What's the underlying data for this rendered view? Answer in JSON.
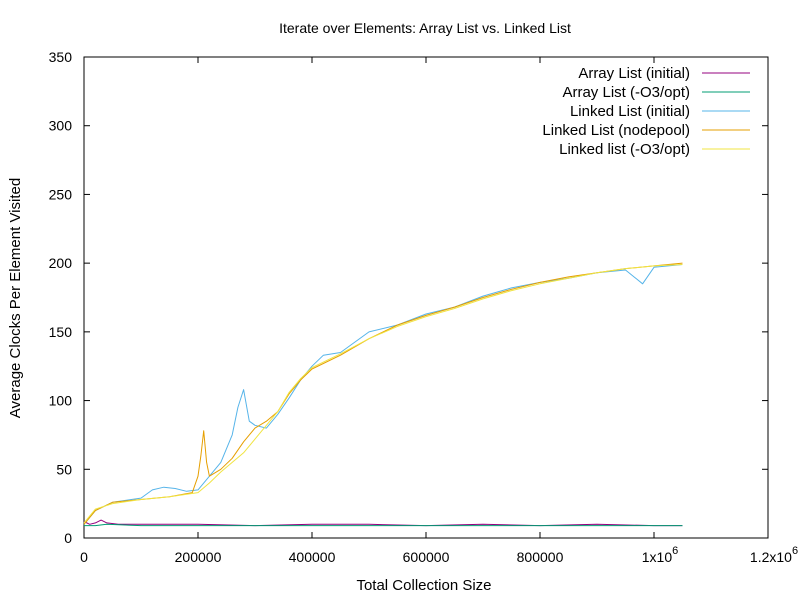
{
  "chart_data": {
    "type": "line",
    "title": "Iterate over Elements:  Array List vs. Linked List",
    "xlabel": "Total Collection Size",
    "ylabel": "Average Clocks Per Element Visited",
    "xlim": [
      0,
      1200000
    ],
    "ylim": [
      0,
      350
    ],
    "grid": false,
    "legend_position": "top-right",
    "x_ticks": [
      {
        "value": 0,
        "label": "0"
      },
      {
        "value": 200000,
        "label": "200000"
      },
      {
        "value": 400000,
        "label": "400000"
      },
      {
        "value": 600000,
        "label": "600000"
      },
      {
        "value": 800000,
        "label": "800000"
      },
      {
        "value": 1000000,
        "label": "1x10",
        "exp": "6"
      },
      {
        "value": 1200000,
        "label": "1.2x10",
        "exp": "6"
      }
    ],
    "y_ticks": [
      0,
      50,
      100,
      150,
      200,
      250,
      300,
      350
    ],
    "series": [
      {
        "name": "Array List (initial)",
        "color": "#94007f",
        "x": [
          0,
          10000,
          20000,
          30000,
          40000,
          60000,
          100000,
          200000,
          300000,
          400000,
          500000,
          600000,
          700000,
          800000,
          900000,
          1000000,
          1050000
        ],
        "y": [
          12,
          10,
          11,
          13,
          11,
          10,
          10,
          10,
          9,
          10,
          10,
          9,
          10,
          9,
          10,
          9,
          9
        ]
      },
      {
        "name": "Array List (-O3/opt)",
        "color": "#009e73",
        "x": [
          0,
          20000,
          40000,
          100000,
          200000,
          300000,
          400000,
          500000,
          600000,
          700000,
          800000,
          900000,
          1000000,
          1050000
        ],
        "y": [
          9,
          9,
          10,
          9,
          9,
          9,
          9,
          9,
          9,
          9,
          9,
          9,
          9,
          9
        ]
      },
      {
        "name": "Linked List (initial)",
        "color": "#56b4e9",
        "x": [
          0,
          20000,
          50000,
          100000,
          120000,
          140000,
          160000,
          180000,
          200000,
          220000,
          240000,
          260000,
          270000,
          280000,
          290000,
          300000,
          320000,
          340000,
          360000,
          380000,
          400000,
          420000,
          450000,
          500000,
          550000,
          600000,
          650000,
          700000,
          750000,
          800000,
          850000,
          900000,
          950000,
          980000,
          1000000,
          1050000
        ],
        "y": [
          10,
          20,
          26,
          29,
          35,
          37,
          36,
          34,
          35,
          45,
          55,
          75,
          95,
          108,
          85,
          82,
          80,
          90,
          102,
          115,
          125,
          133,
          135,
          150,
          155,
          163,
          168,
          176,
          182,
          186,
          189,
          193,
          195,
          185,
          197,
          199
        ]
      },
      {
        "name": "Linked List (nodepool)",
        "color": "#e69f00",
        "x": [
          0,
          20000,
          50000,
          100000,
          150000,
          190000,
          200000,
          205000,
          210000,
          215000,
          220000,
          240000,
          260000,
          280000,
          300000,
          320000,
          340000,
          360000,
          380000,
          400000,
          450000,
          500000,
          550000,
          600000,
          650000,
          700000,
          750000,
          800000,
          850000,
          900000,
          950000,
          1000000,
          1050000
        ],
        "y": [
          10,
          20,
          26,
          28,
          30,
          33,
          45,
          60,
          78,
          55,
          45,
          50,
          58,
          70,
          80,
          85,
          92,
          105,
          115,
          123,
          133,
          145,
          155,
          162,
          168,
          175,
          181,
          186,
          190,
          193,
          196,
          198,
          200
        ]
      },
      {
        "name": "Linked list (-O3/opt)",
        "color": "#f0e442",
        "x": [
          0,
          20000,
          50000,
          100000,
          150000,
          200000,
          220000,
          240000,
          260000,
          280000,
          300000,
          320000,
          340000,
          360000,
          380000,
          400000,
          450000,
          500000,
          550000,
          600000,
          650000,
          700000,
          750000,
          800000,
          850000,
          900000,
          950000,
          1000000,
          1050000
        ],
        "y": [
          11,
          21,
          25,
          28,
          30,
          33,
          40,
          48,
          55,
          62,
          72,
          82,
          92,
          106,
          116,
          124,
          134,
          145,
          154,
          161,
          167,
          174,
          180,
          185,
          189,
          193,
          196,
          198,
          199
        ]
      }
    ]
  }
}
